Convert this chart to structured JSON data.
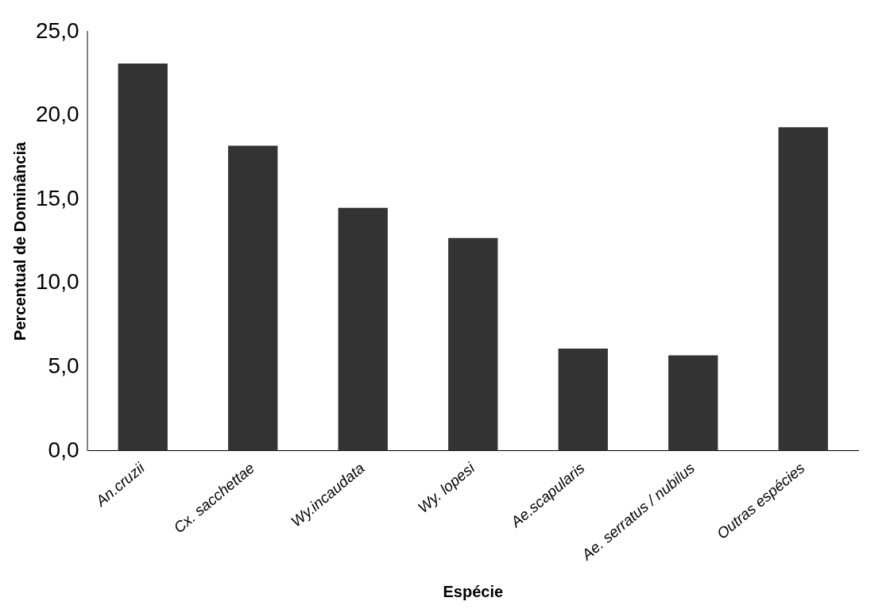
{
  "chart_data": {
    "type": "bar",
    "xlabel": "Espécie",
    "ylabel": "Percentual de Dominância",
    "categories": [
      "An.cruzii",
      "Cx. sacchettae",
      "Wy.incaudata",
      "Wy. lopesi",
      "Ae.scapularis",
      "Ae. serratus / nubilus",
      "Outras espécies"
    ],
    "values": [
      23.1,
      18.2,
      14.5,
      12.7,
      6.1,
      5.7,
      19.3
    ],
    "color": "#333333",
    "ylim": [
      0,
      25
    ],
    "yticks": [
      {
        "value": 0,
        "label": "0,0"
      },
      {
        "value": 5,
        "label": "5,0"
      },
      {
        "value": 10,
        "label": "10,0"
      },
      {
        "value": 15,
        "label": "15,0"
      },
      {
        "value": 20,
        "label": "20,0"
      },
      {
        "value": 25,
        "label": "25,0"
      }
    ],
    "grid": false,
    "legend": false
  }
}
